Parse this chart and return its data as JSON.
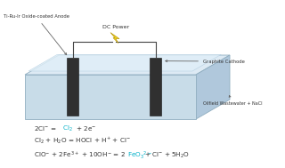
{
  "background_color": "#ffffff",
  "fig_width": 3.2,
  "fig_height": 1.89,
  "dpi": 100,
  "anode_label": "Ti-Ru-Ir Oxide-coated Anode",
  "cathode_label": "Graphite Cathode",
  "power_label": "DC Power",
  "solution_label": "Oilfield Wastewater + NaCl",
  "box_front_color": "#c8dce8",
  "box_top_color": "#ddeaf4",
  "box_right_color": "#b0c8dc",
  "box_edge_color": "#90aec0",
  "electrode_color": "#303030",
  "wire_color": "#444444",
  "bolt_color": "#f0d020",
  "bolt_edge_color": "#b09000",
  "arrow_color": "#666666",
  "label_color": "#333333",
  "cyan_color": "#00b0c8",
  "dark_color": "#333333"
}
